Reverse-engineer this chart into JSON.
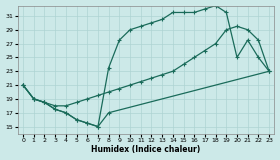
{
  "bg_color": "#cce9e8",
  "grid_color": "#aed4d3",
  "line_color": "#1a6b5a",
  "xlabel": "Humidex (Indice chaleur)",
  "xlim": [
    -0.5,
    23.5
  ],
  "ylim": [
    14.0,
    32.5
  ],
  "yticks": [
    15,
    17,
    19,
    21,
    23,
    25,
    27,
    29,
    31
  ],
  "xticks": [
    0,
    1,
    2,
    3,
    4,
    5,
    6,
    7,
    8,
    9,
    10,
    11,
    12,
    13,
    14,
    15,
    16,
    17,
    18,
    19,
    20,
    21,
    22,
    23
  ],
  "line1_x": [
    0,
    1,
    2,
    3,
    4,
    5,
    6,
    7,
    8,
    23
  ],
  "line1_y": [
    21,
    19,
    18.5,
    17.5,
    17,
    16,
    15.5,
    15,
    17,
    23
  ],
  "line2_x": [
    0,
    1,
    2,
    3,
    4,
    5,
    6,
    7,
    8,
    9,
    10,
    11,
    12,
    13,
    14,
    15,
    16,
    17,
    18,
    19,
    20,
    21,
    22,
    23
  ],
  "line2_y": [
    21,
    19,
    18.5,
    17.5,
    17,
    16,
    15.5,
    15,
    23.5,
    27.5,
    29,
    29.5,
    30,
    30.5,
    31.5,
    31.5,
    31.5,
    32,
    32.5,
    31.5,
    25,
    27.5,
    25,
    23
  ],
  "line3_x": [
    0,
    1,
    2,
    3,
    4,
    5,
    6,
    7,
    8,
    9,
    10,
    11,
    12,
    13,
    14,
    15,
    16,
    17,
    18,
    19,
    20,
    21,
    22,
    23
  ],
  "line3_y": [
    21,
    19,
    18.5,
    18,
    18,
    18.5,
    19,
    19.5,
    20,
    20.5,
    21,
    21.5,
    22,
    22.5,
    23,
    24,
    25,
    26,
    27,
    29,
    29.5,
    29,
    27.5,
    23
  ]
}
